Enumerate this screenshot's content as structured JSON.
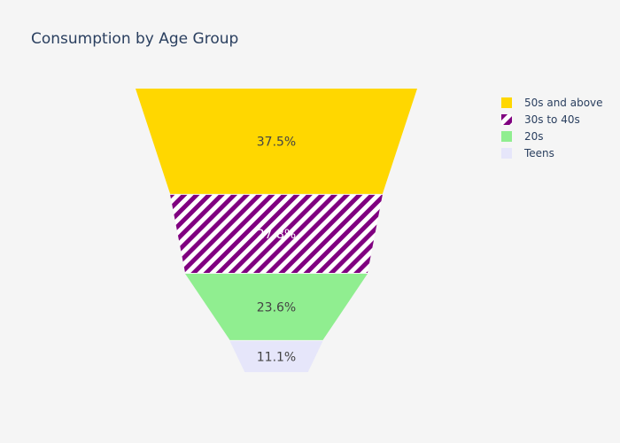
{
  "chart_data": {
    "type": "funnel",
    "title": "Consumption by Age Group",
    "xlabel": "",
    "ylabel": "",
    "categories": [
      "50s and above",
      "30s to 40s",
      "20s",
      "Teens"
    ],
    "values": [
      37.5,
      27.8,
      23.6,
      11.1
    ],
    "value_labels": [
      "37.5%",
      "27.8%",
      "23.6%",
      "11.1%"
    ],
    "colors": [
      "#FFD700",
      "#800080",
      "#90EE90",
      "#E6E6FA"
    ],
    "patterns": [
      "solid",
      "diagonal-stripe",
      "solid",
      "solid"
    ],
    "legend": {
      "position": "top-right",
      "items": [
        {
          "label": "50s and above",
          "color": "#FFD700",
          "pattern": "solid"
        },
        {
          "label": "30s to 40s",
          "color": "#800080",
          "pattern": "diagonal-stripe"
        },
        {
          "label": "20s",
          "color": "#90EE90",
          "pattern": "solid"
        },
        {
          "label": "Teens",
          "color": "#E6E6FA",
          "pattern": "solid"
        }
      ]
    },
    "grid": false
  }
}
